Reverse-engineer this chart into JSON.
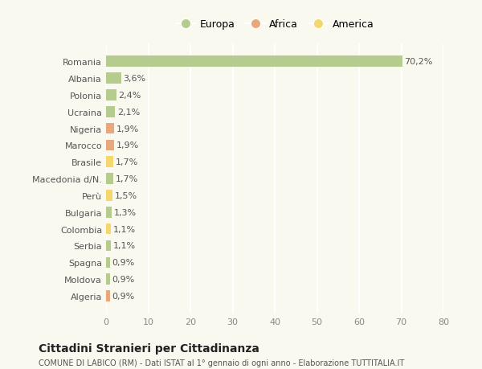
{
  "countries": [
    "Romania",
    "Albania",
    "Polonia",
    "Ucraina",
    "Nigeria",
    "Marocco",
    "Brasile",
    "Macedonia d/N.",
    "Perù",
    "Bulgaria",
    "Colombia",
    "Serbia",
    "Spagna",
    "Moldova",
    "Algeria"
  ],
  "values": [
    70.2,
    3.6,
    2.4,
    2.1,
    1.9,
    1.9,
    1.7,
    1.7,
    1.5,
    1.3,
    1.1,
    1.1,
    0.9,
    0.9,
    0.9
  ],
  "labels": [
    "70,2%",
    "3,6%",
    "2,4%",
    "2,1%",
    "1,9%",
    "1,9%",
    "1,7%",
    "1,7%",
    "1,5%",
    "1,3%",
    "1,1%",
    "1,1%",
    "0,9%",
    "0,9%",
    "0,9%"
  ],
  "regions": [
    "Europa",
    "Europa",
    "Europa",
    "Europa",
    "Africa",
    "Africa",
    "America",
    "Europa",
    "America",
    "Europa",
    "America",
    "Europa",
    "Europa",
    "Europa",
    "Africa"
  ],
  "region_colors": {
    "Europa": "#b5cc8e",
    "Africa": "#e8a87c",
    "America": "#f5d76e"
  },
  "background_color": "#f9f9f0",
  "grid_color": "#ffffff",
  "title": "Cittadini Stranieri per Cittadinanza",
  "subtitle": "COMUNE DI LABICO (RM) - Dati ISTAT al 1° gennaio di ogni anno - Elaborazione TUTTITALIA.IT",
  "xlim": [
    0,
    80
  ],
  "xticks": [
    0,
    10,
    20,
    30,
    40,
    50,
    60,
    70,
    80
  ],
  "legend_order": [
    "Europa",
    "Africa",
    "America"
  ]
}
